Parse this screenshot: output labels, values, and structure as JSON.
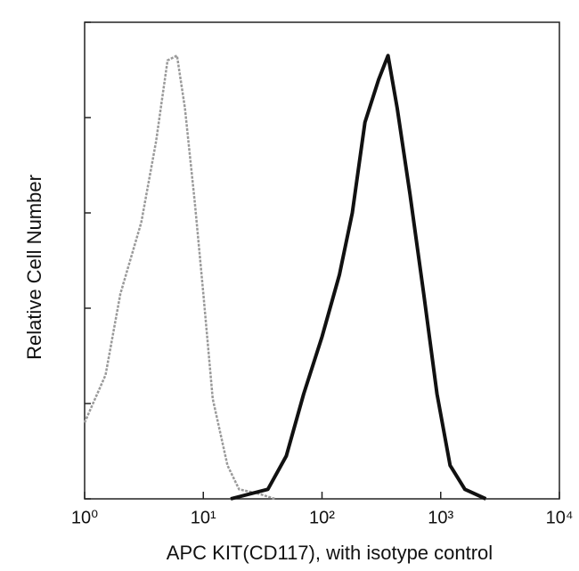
{
  "chart_data": {
    "type": "line",
    "x_label": "APC KIT(CD117), with isotype control",
    "y_label": "Relative Cell Number",
    "xscale": "log",
    "xlim": [
      1,
      10000
    ],
    "xticks": [
      {
        "value": 1,
        "label": "10⁰"
      },
      {
        "value": 10,
        "label": "10¹"
      },
      {
        "value": 100,
        "label": "10²"
      },
      {
        "value": 1000,
        "label": "10³"
      },
      {
        "value": 10000,
        "label": "10⁴"
      }
    ],
    "ylim": [
      0,
      100
    ],
    "yticks": [
      0,
      20,
      40,
      60,
      80,
      100
    ],
    "series": [
      {
        "color": "#9a9a9a",
        "x": [
          1,
          1.5,
          2,
          3,
          4,
          5,
          6,
          7,
          8.5,
          10,
          12,
          16,
          20,
          30,
          40
        ],
        "values": [
          16,
          26,
          43,
          58,
          75,
          92,
          93,
          82,
          62,
          43,
          21,
          7,
          2,
          1,
          0
        ]
      },
      {
        "color": "#111111",
        "x": [
          17,
          35,
          50,
          70,
          100,
          140,
          180,
          230,
          300,
          360,
          430,
          550,
          720,
          930,
          1200,
          1600,
          2400
        ],
        "values": [
          0,
          2,
          9,
          22,
          34,
          47,
          60,
          79,
          88,
          93,
          82,
          64,
          43,
          22,
          7,
          2,
          0
        ]
      }
    ]
  }
}
